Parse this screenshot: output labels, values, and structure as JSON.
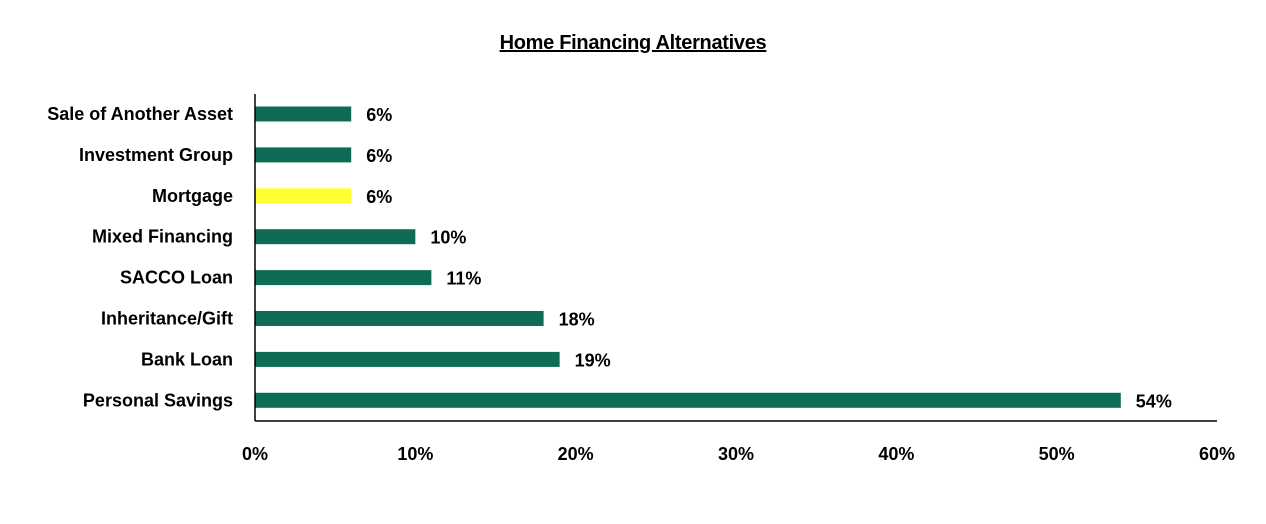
{
  "chart_data": {
    "type": "bar",
    "orientation": "horizontal",
    "title": "Home Financing Alternatives",
    "xlabel": "",
    "ylabel": "",
    "categories": [
      "Sale of Another Asset",
      "Investment Group",
      "Mortgage",
      "Mixed Financing",
      "SACCO Loan",
      "Inheritance/Gift",
      "Bank Loan",
      "Personal Savings"
    ],
    "values": [
      6,
      6,
      6,
      10,
      11,
      18,
      19,
      54
    ],
    "value_labels": [
      "6%",
      "6%",
      "6%",
      "10%",
      "11%",
      "18%",
      "19%",
      "54%"
    ],
    "bar_colors": [
      "#0e6b55",
      "#0e6b55",
      "#ffff33",
      "#0e6b55",
      "#0e6b55",
      "#0e6b55",
      "#0e6b55",
      "#0e6b55"
    ],
    "xlim": [
      0,
      60
    ],
    "x_ticks": [
      0,
      10,
      20,
      30,
      40,
      50,
      60
    ],
    "x_tick_labels": [
      "0%",
      "10%",
      "20%",
      "30%",
      "40%",
      "50%",
      "60%"
    ],
    "grid": false,
    "legend": "none"
  }
}
